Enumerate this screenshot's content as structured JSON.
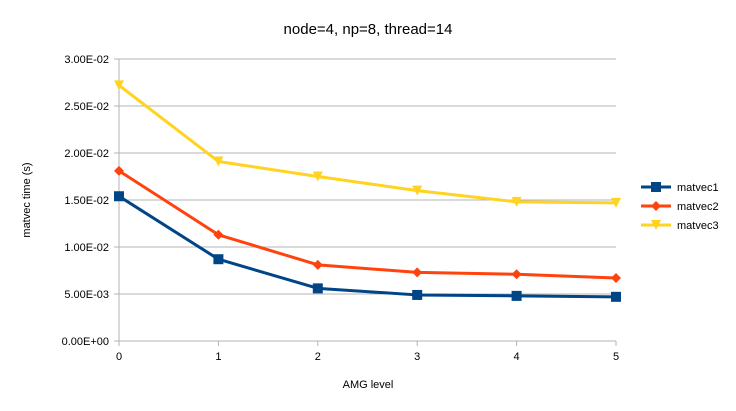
{
  "chart_data": {
    "type": "line",
    "title": "node=4, np=8, thread=14",
    "xlabel": "AMG level",
    "ylabel": "matvec time (s)",
    "x": [
      0,
      1,
      2,
      3,
      4,
      5
    ],
    "x_tick_labels": [
      "0",
      "1",
      "2",
      "3",
      "4",
      "5"
    ],
    "ylim": [
      0,
      0.03
    ],
    "y_ticks": [
      0,
      0.005,
      0.01,
      0.015,
      0.02,
      0.025,
      0.03
    ],
    "y_tick_labels": [
      "0.00E+00",
      "5.00E-03",
      "1.00E-02",
      "1.50E-02",
      "2.00E-02",
      "2.50E-02",
      "3.00E-02"
    ],
    "grid": true,
    "legend_position": "right",
    "series": [
      {
        "name": "matvec1",
        "color": "#004586",
        "marker": "square",
        "values": [
          0.0154,
          0.0087,
          0.0056,
          0.0049,
          0.0048,
          0.0047
        ]
      },
      {
        "name": "matvec2",
        "color": "#ff420e",
        "marker": "diamond",
        "values": [
          0.0181,
          0.0113,
          0.0081,
          0.0073,
          0.0071,
          0.0067
        ]
      },
      {
        "name": "matvec3",
        "color": "#ffd320",
        "marker": "triangle-down",
        "values": [
          0.0272,
          0.0191,
          0.0175,
          0.016,
          0.0148,
          0.0147
        ]
      }
    ]
  }
}
